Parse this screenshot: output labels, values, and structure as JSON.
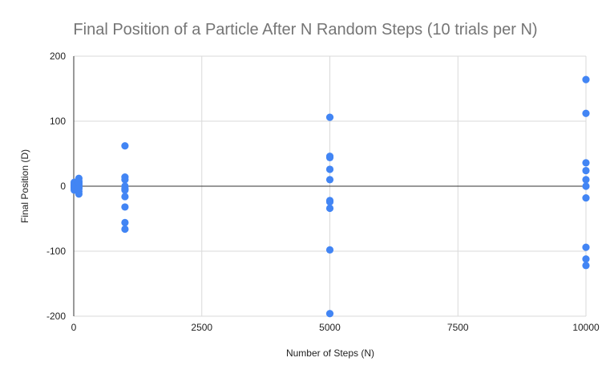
{
  "chart_data": {
    "type": "scatter",
    "title": "Final Position of a Particle After N Random Steps (10 trials per N)",
    "xlabel": "Number of Steps (N)",
    "ylabel": "Final Position (D)",
    "xlim": [
      0,
      10000
    ],
    "ylim": [
      -200,
      200
    ],
    "x_ticks": [
      0,
      2500,
      5000,
      7500,
      10000
    ],
    "y_ticks": [
      -200,
      -100,
      0,
      100,
      200
    ],
    "x_tick_labels": [
      "0",
      "2500",
      "5000",
      "7500",
      "10000"
    ],
    "y_tick_labels": [
      "-200",
      "-100",
      "0",
      "100",
      "200"
    ],
    "grid": true,
    "legend": "none",
    "series": [
      {
        "color": "#4285f4",
        "points": [
          {
            "x": 10,
            "y": 4
          },
          {
            "x": 10,
            "y": 2
          },
          {
            "x": 10,
            "y": 0
          },
          {
            "x": 10,
            "y": -2
          },
          {
            "x": 10,
            "y": -4
          },
          {
            "x": 10,
            "y": 6
          },
          {
            "x": 10,
            "y": -6
          },
          {
            "x": 10,
            "y": 2
          },
          {
            "x": 10,
            "y": 0
          },
          {
            "x": 10,
            "y": -2
          },
          {
            "x": 100,
            "y": 12
          },
          {
            "x": 100,
            "y": 8
          },
          {
            "x": 100,
            "y": 4
          },
          {
            "x": 100,
            "y": 2
          },
          {
            "x": 100,
            "y": 0
          },
          {
            "x": 100,
            "y": -2
          },
          {
            "x": 100,
            "y": -4
          },
          {
            "x": 100,
            "y": -8
          },
          {
            "x": 100,
            "y": -12
          },
          {
            "x": 100,
            "y": 6
          },
          {
            "x": 1000,
            "y": 62
          },
          {
            "x": 1000,
            "y": 14
          },
          {
            "x": 1000,
            "y": 10
          },
          {
            "x": 1000,
            "y": 0
          },
          {
            "x": 1000,
            "y": -4
          },
          {
            "x": 1000,
            "y": -6
          },
          {
            "x": 1000,
            "y": -16
          },
          {
            "x": 1000,
            "y": -32
          },
          {
            "x": 1000,
            "y": -56
          },
          {
            "x": 1000,
            "y": -66
          },
          {
            "x": 5000,
            "y": 106
          },
          {
            "x": 5000,
            "y": 44
          },
          {
            "x": 5000,
            "y": 26
          },
          {
            "x": 5000,
            "y": 10
          },
          {
            "x": 5000,
            "y": -22
          },
          {
            "x": 5000,
            "y": -24
          },
          {
            "x": 5000,
            "y": -34
          },
          {
            "x": 5000,
            "y": -98
          },
          {
            "x": 5000,
            "y": -196
          },
          {
            "x": 5000,
            "y": 46
          },
          {
            "x": 10000,
            "y": 164
          },
          {
            "x": 10000,
            "y": 112
          },
          {
            "x": 10000,
            "y": 36
          },
          {
            "x": 10000,
            "y": 24
          },
          {
            "x": 10000,
            "y": 10
          },
          {
            "x": 10000,
            "y": 0
          },
          {
            "x": 10000,
            "y": -18
          },
          {
            "x": 10000,
            "y": -94
          },
          {
            "x": 10000,
            "y": -112
          },
          {
            "x": 10000,
            "y": -122
          }
        ]
      }
    ]
  }
}
